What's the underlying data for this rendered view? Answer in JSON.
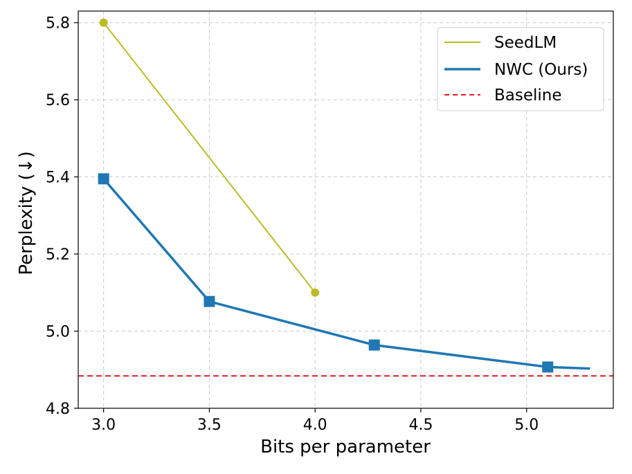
{
  "chart_data": {
    "type": "line",
    "title": "",
    "xlabel": "Bits per parameter",
    "ylabel": "Perplexity (↓)",
    "xlim": [
      2.88,
      5.41
    ],
    "ylim": [
      4.8,
      5.83
    ],
    "xticks": [
      3.0,
      3.5,
      4.0,
      4.5,
      5.0
    ],
    "xtick_labels": [
      "3.0",
      "3.5",
      "4.0",
      "4.5",
      "5.0"
    ],
    "yticks": [
      4.8,
      5.0,
      5.2,
      5.4,
      5.6,
      5.8
    ],
    "ytick_labels": [
      "4.8",
      "5.0",
      "5.2",
      "5.4",
      "5.6",
      "5.8"
    ],
    "grid": true,
    "legend_position": "top-right",
    "series": [
      {
        "name": "SeedLM",
        "color": "#bcbd22",
        "marker": "circle",
        "x": [
          3.0,
          4.0
        ],
        "y": [
          5.8,
          5.1
        ],
        "marker_x": [
          3.0,
          4.0
        ]
      },
      {
        "name": "NWC (Ours)",
        "color": "#1f77b4",
        "marker": "square",
        "x": [
          3.0,
          3.5,
          4.28,
          5.1,
          5.3
        ],
        "y": [
          5.395,
          5.077,
          4.964,
          4.907,
          4.903
        ],
        "marker_x": [
          3.0,
          3.5,
          4.28,
          5.1
        ]
      }
    ],
    "baseline": {
      "name": "Baseline",
      "color": "#e31a1c",
      "y": 4.884,
      "style": "dashed"
    }
  }
}
